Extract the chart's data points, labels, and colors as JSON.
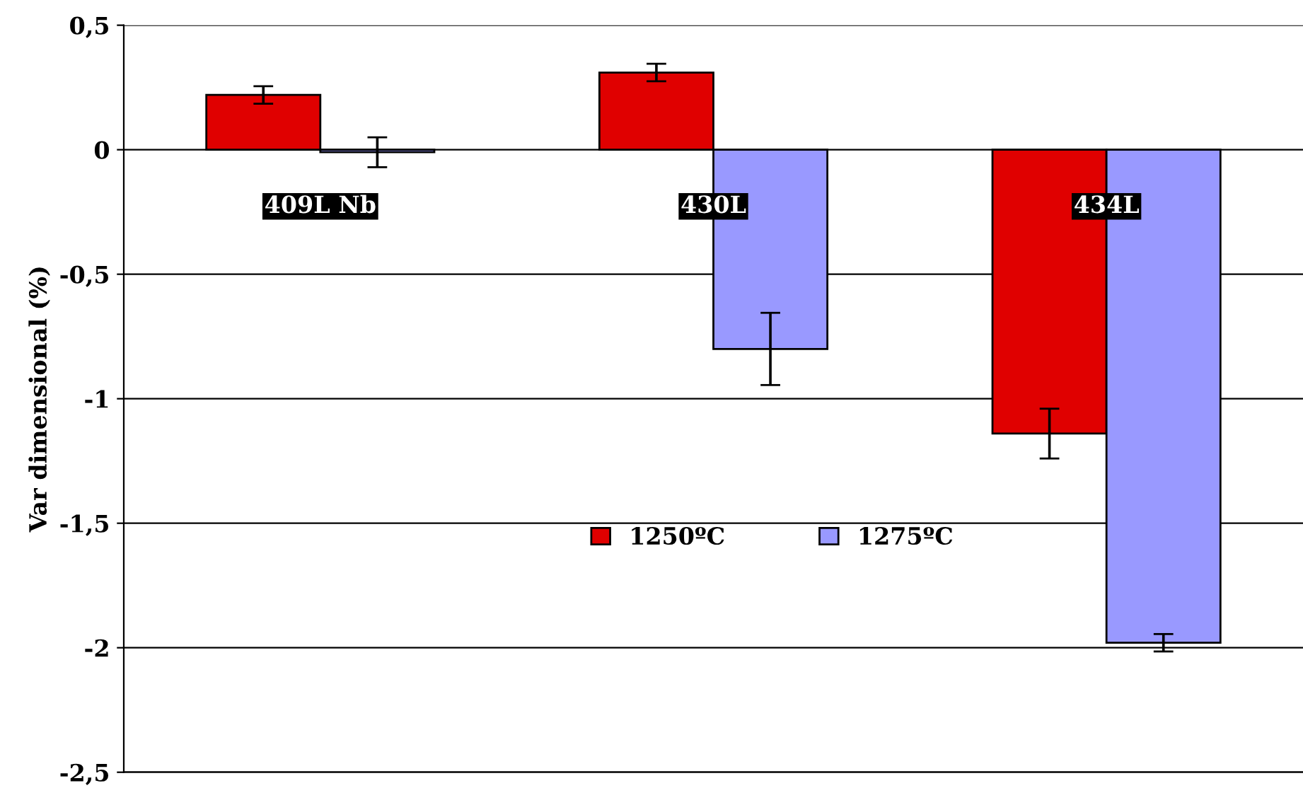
{
  "chart_data": {
    "type": "bar",
    "ylabel": "Var dimensional (%)",
    "categories": [
      "409L Nb",
      "430L",
      "434L"
    ],
    "series": [
      {
        "name": "1250ºC",
        "color": "#e00000",
        "values": [
          0.22,
          0.31,
          -1.14
        ],
        "errors": [
          0.035,
          0.035,
          0.1
        ]
      },
      {
        "name": "1275ºC",
        "color": "#9999ff",
        "values": [
          -0.01,
          -0.8,
          -1.98
        ],
        "errors": [
          0.06,
          0.145,
          0.035
        ]
      }
    ],
    "ylim": [
      -2.5,
      0.5
    ],
    "yticks": [
      {
        "value": -2.5,
        "label": "-2,5"
      },
      {
        "value": -2,
        "label": "-2"
      },
      {
        "value": -1.5,
        "label": "-1,5"
      },
      {
        "value": -1,
        "label": "-1"
      },
      {
        "value": -0.5,
        "label": "-0,5"
      },
      {
        "value": 0,
        "label": "0"
      },
      {
        "value": 0.5,
        "label": "0,5"
      }
    ],
    "grid": "y",
    "legend": "bottom"
  }
}
